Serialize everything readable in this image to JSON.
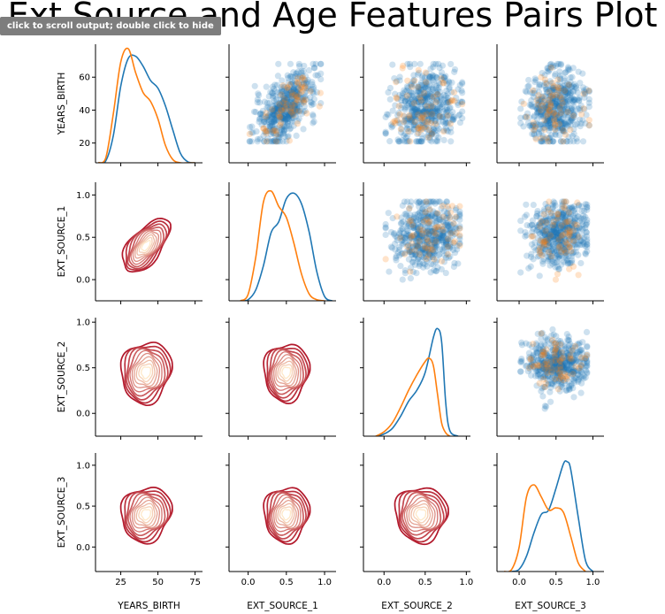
{
  "ui": {
    "scroll_hint": "click to scroll output; double click to hide"
  },
  "chart_data": {
    "type": "scatter",
    "title": "Ext Source and Age Features Pairs Plot",
    "variables": [
      "YEARS_BIRTH",
      "EXT_SOURCE_1",
      "EXT_SOURCE_2",
      "EXT_SOURCE_3"
    ],
    "colors": {
      "class0": "#1f77b4",
      "class1": "#ff7f0e",
      "kde_dark": "#b2182b",
      "kde_light": "#fee8c8"
    },
    "ranges": {
      "YEARS_BIRTH": [
        8,
        80
      ],
      "EXT_SOURCE_1": [
        -0.25,
        1.15
      ],
      "EXT_SOURCE_2": [
        -0.25,
        1.05
      ],
      "EXT_SOURCE_3": [
        -0.3,
        1.15
      ]
    },
    "diag_ylim": [
      0,
      1.08
    ],
    "ticks": {
      "YEARS_BIRTH": [
        20,
        40,
        60
      ],
      "EXT_SOURCE_1": [
        0.0,
        0.5,
        1.0
      ],
      "EXT_SOURCE_2": [
        0.0,
        0.5,
        1.0
      ],
      "EXT_SOURCE_3": [
        0.0,
        0.5,
        1.0
      ],
      "x_YEARS_BIRTH": [
        25,
        50,
        75
      ]
    },
    "tick_labels": {
      "y": {
        "YEARS_BIRTH": [
          "20",
          "40",
          "60"
        ],
        "EXT_SOURCE_1": [
          "0.0",
          "0.5",
          "1.0"
        ],
        "EXT_SOURCE_2": [
          "0.0",
          "0.5",
          "1.0"
        ],
        "EXT_SOURCE_3": [
          "0.0",
          "0.5",
          "1.0"
        ]
      },
      "x": {
        "YEARS_BIRTH": [
          "25",
          "50",
          "75"
        ],
        "EXT_SOURCE_1": [
          "0.0",
          "0.5",
          "1.0"
        ],
        "EXT_SOURCE_2": [
          "0.0",
          "0.5",
          "1.0"
        ],
        "EXT_SOURCE_3": [
          "0.0",
          "0.5",
          "1.0"
        ]
      }
    },
    "diag_kde": [
      {
        "var": "YEARS_BIRTH",
        "series": [
          {
            "name": "",
            "color": "#1f77b4",
            "x": [
              10,
              15,
              20,
              25,
              30,
              35,
              40,
              45,
              50,
              55,
              60,
              65,
              70,
              75
            ],
            "y": [
              0.0,
              0.02,
              0.25,
              0.7,
              0.95,
              0.97,
              0.88,
              0.75,
              0.68,
              0.52,
              0.3,
              0.09,
              0.01,
              0.0
            ]
          },
          {
            "name": "",
            "color": "#ff7f0e",
            "x": [
              10,
              15,
              20,
              25,
              30,
              35,
              40,
              45,
              50,
              55,
              60,
              65,
              70,
              75
            ],
            "y": [
              0.0,
              0.05,
              0.45,
              0.92,
              1.04,
              0.82,
              0.64,
              0.56,
              0.4,
              0.16,
              0.03,
              0.0,
              0.0,
              0.0
            ]
          }
        ]
      },
      {
        "var": "EXT_SOURCE_1",
        "series": [
          {
            "name": "",
            "color": "#1f77b4",
            "x": [
              -0.1,
              0.0,
              0.1,
              0.2,
              0.3,
              0.4,
              0.5,
              0.6,
              0.7,
              0.8,
              0.9,
              1.0,
              1.1
            ],
            "y": [
              0.0,
              0.01,
              0.1,
              0.32,
              0.62,
              0.72,
              0.93,
              0.98,
              0.88,
              0.62,
              0.26,
              0.04,
              0.0
            ]
          },
          {
            "name": "",
            "color": "#ff7f0e",
            "x": [
              -0.1,
              0.0,
              0.1,
              0.2,
              0.3,
              0.4,
              0.5,
              0.6,
              0.7,
              0.8,
              0.9,
              1.0
            ],
            "y": [
              0.0,
              0.06,
              0.4,
              0.9,
              1.0,
              0.86,
              0.76,
              0.52,
              0.24,
              0.06,
              0.01,
              0.0
            ]
          }
        ]
      },
      {
        "var": "EXT_SOURCE_2",
        "series": [
          {
            "name": "",
            "color": "#1f77b4",
            "x": [
              -0.1,
              0.0,
              0.1,
              0.2,
              0.3,
              0.4,
              0.5,
              0.6,
              0.65,
              0.7,
              0.75,
              0.8,
              0.9
            ],
            "y": [
              0.0,
              0.02,
              0.07,
              0.18,
              0.32,
              0.42,
              0.58,
              0.9,
              0.98,
              0.86,
              0.3,
              0.05,
              0.0
            ]
          },
          {
            "name": "",
            "color": "#ff7f0e",
            "x": [
              -0.1,
              0.0,
              0.1,
              0.2,
              0.3,
              0.4,
              0.5,
              0.55,
              0.6,
              0.65,
              0.7,
              0.75,
              0.8
            ],
            "y": [
              0.0,
              0.04,
              0.12,
              0.26,
              0.42,
              0.56,
              0.68,
              0.71,
              0.64,
              0.38,
              0.12,
              0.03,
              0.0
            ]
          }
        ]
      },
      {
        "var": "EXT_SOURCE_3",
        "series": [
          {
            "name": "",
            "color": "#1f77b4",
            "x": [
              -0.1,
              0.0,
              0.1,
              0.2,
              0.3,
              0.4,
              0.5,
              0.6,
              0.65,
              0.7,
              0.8,
              0.9,
              1.0
            ],
            "y": [
              0.0,
              0.02,
              0.14,
              0.35,
              0.52,
              0.56,
              0.76,
              0.98,
              1.0,
              0.93,
              0.5,
              0.1,
              0.0
            ]
          },
          {
            "name": "",
            "color": "#ff7f0e",
            "x": [
              -0.2,
              -0.1,
              0.0,
              0.1,
              0.2,
              0.3,
              0.4,
              0.5,
              0.6,
              0.7,
              0.8,
              0.9
            ],
            "y": [
              0.0,
              0.02,
              0.22,
              0.68,
              0.79,
              0.68,
              0.56,
              0.58,
              0.54,
              0.32,
              0.08,
              0.0
            ]
          }
        ]
      }
    ],
    "scatter_clusters": {
      "YEARS_BIRTH|EXT_SOURCE_1": {
        "x_mean": 45,
        "x_sd": 11,
        "y_mean": 0.5,
        "y_sd": 0.2,
        "corr": 0.6,
        "n0": 480,
        "n1": 70
      },
      "YEARS_BIRTH|EXT_SOURCE_2": {
        "x_mean": 0.5,
        "x_sd": 0.2,
        "y_mean": 42,
        "y_sd": 12,
        "corr": 0.1,
        "n0": 480,
        "n1": 70
      },
      "YEARS_BIRTH|EXT_SOURCE_3": {
        "x_mean": 0.5,
        "x_sd": 0.2,
        "y_mean": 42,
        "y_sd": 12,
        "corr": 0.1,
        "n0": 480,
        "n1": 70
      },
      "EXT_SOURCE_1|EXT_SOURCE_2": {
        "x_mean": 0.52,
        "x_sd": 0.2,
        "y_mean": 0.52,
        "y_sd": 0.2,
        "corr": 0.1,
        "n0": 480,
        "n1": 70
      },
      "EXT_SOURCE_1|EXT_SOURCE_3": {
        "x_mean": 0.52,
        "x_sd": 0.2,
        "y_mean": 0.52,
        "y_sd": 0.2,
        "corr": 0.1,
        "n0": 480,
        "n1": 70
      },
      "EXT_SOURCE_2|EXT_SOURCE_3": {
        "x_mean": 0.52,
        "x_sd": 0.2,
        "y_mean": 0.55,
        "y_sd": 0.14,
        "corr": 0.05,
        "n0": 480,
        "n1": 70
      }
    },
    "kde_contours": {
      "EXT_SOURCE_1|YEARS_BIRTH": {
        "cx": 42,
        "cy": 0.4,
        "sx": 15,
        "sy": 0.3,
        "corr": 0.6
      },
      "EXT_SOURCE_2|YEARS_BIRTH": {
        "cx": 42,
        "cy": 0.45,
        "sx": 16,
        "sy": 0.32,
        "corr": 0.1
      },
      "EXT_SOURCE_2|EXT_SOURCE_1": {
        "cx": 0.5,
        "cy": 0.45,
        "sx": 0.28,
        "sy": 0.3,
        "corr": 0.05
      },
      "EXT_SOURCE_3|YEARS_BIRTH": {
        "cx": 42,
        "cy": 0.4,
        "sx": 16,
        "sy": 0.32,
        "corr": 0.1
      },
      "EXT_SOURCE_3|EXT_SOURCE_1": {
        "cx": 0.5,
        "cy": 0.4,
        "sx": 0.28,
        "sy": 0.32,
        "corr": 0.05
      },
      "EXT_SOURCE_3|EXT_SOURCE_2": {
        "cx": 0.45,
        "cy": 0.4,
        "sx": 0.3,
        "sy": 0.32,
        "corr": 0.0
      }
    }
  }
}
